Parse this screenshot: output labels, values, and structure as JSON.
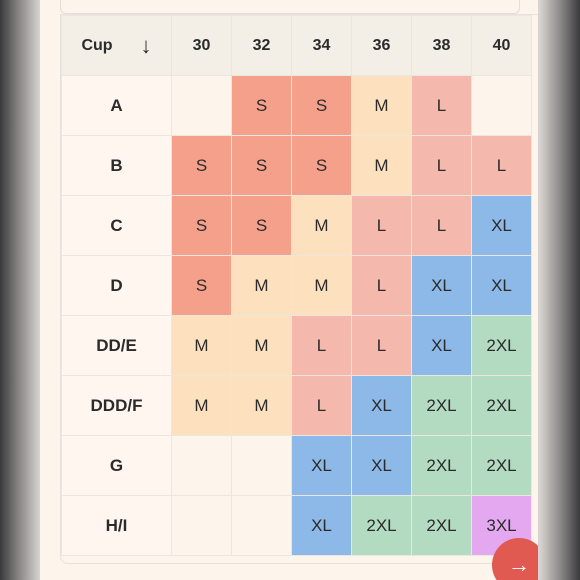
{
  "table": {
    "cup_label": "Cup",
    "sort_icon": "↓",
    "bands": [
      "30",
      "32",
      "34",
      "36",
      "38",
      "40"
    ],
    "rows": [
      {
        "cup": "A",
        "sizes": [
          "",
          "S",
          "S",
          "M",
          "L",
          ""
        ]
      },
      {
        "cup": "B",
        "sizes": [
          "S",
          "S",
          "S",
          "M",
          "L",
          "L"
        ]
      },
      {
        "cup": "C",
        "sizes": [
          "S",
          "S",
          "M",
          "L",
          "L",
          "XL"
        ]
      },
      {
        "cup": "D",
        "sizes": [
          "S",
          "M",
          "M",
          "L",
          "XL",
          "XL"
        ]
      },
      {
        "cup": "DD/E",
        "sizes": [
          "M",
          "M",
          "L",
          "L",
          "XL",
          "2XL"
        ]
      },
      {
        "cup": "DDD/F",
        "sizes": [
          "M",
          "M",
          "L",
          "XL",
          "2XL",
          "2XL"
        ]
      },
      {
        "cup": "G",
        "sizes": [
          "",
          "",
          "XL",
          "XL",
          "2XL",
          "2XL"
        ]
      },
      {
        "cup": "H/I",
        "sizes": [
          "",
          "",
          "XL",
          "2XL",
          "2XL",
          "3XL"
        ]
      }
    ]
  },
  "size_colors": {
    "S": "#f4a08b",
    "M": "#fde1be",
    "L": "#f4b8ac",
    "XL": "#8db9e8",
    "2XL": "#b2dbc2",
    "3XL": "#e4a8f1"
  },
  "next_button": {
    "icon": "→",
    "icon_name": "arrow-right-icon",
    "color": "#e05a52"
  }
}
